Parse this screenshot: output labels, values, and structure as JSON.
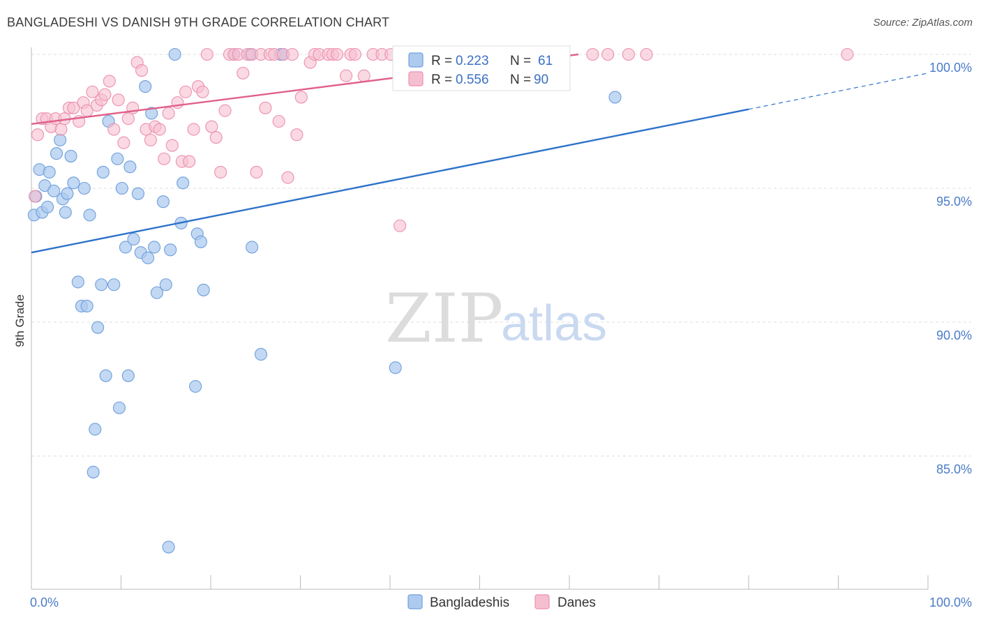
{
  "title": "BANGLADESHI VS DANISH 9TH GRADE CORRELATION CHART",
  "source": "Source: ZipAtlas.com",
  "watermark": {
    "zip": "ZIP",
    "atlas": "atlas"
  },
  "colors": {
    "blue_fill": "#aecbef",
    "blue_stroke": "#6e9fdc",
    "blue_line": "#2d72c9",
    "pink_fill": "#f6bfd0",
    "pink_stroke": "#ec8fae",
    "pink_line": "#e0608a",
    "grid": "#dddddd",
    "axis": "#bbbbbb"
  },
  "chart_data": {
    "type": "scatter",
    "title": "BANGLADESHI VS DANISH 9TH GRADE CORRELATION CHART",
    "xlabel": "",
    "ylabel": "9th Grade",
    "xlim": [
      0,
      100
    ],
    "ylim": [
      80.5,
      100.8
    ],
    "x_tick_labels": [
      "0.0%",
      "100.0%"
    ],
    "y_ticks": [
      {
        "value": 100,
        "label": "100.0%"
      },
      {
        "value": 95,
        "label": "95.0%"
      },
      {
        "value": 90,
        "label": "90.0%"
      },
      {
        "value": 85,
        "label": "85.0%"
      }
    ],
    "legend_stats": [
      {
        "r_label": "R = ",
        "r": "0.223",
        "n_label": "N = ",
        "n": "61"
      },
      {
        "r_label": "R = ",
        "r": "0.556",
        "n_label": "N = ",
        "n": "90"
      }
    ],
    "series": [
      {
        "name": "Bangladeshis",
        "trend": {
          "x0": 0,
          "y0": 92.6,
          "x1": 80,
          "y1": 97.95,
          "dash_to_x": 100,
          "dash_to_y": 99.3
        },
        "points": [
          [
            0.3,
            94.0
          ],
          [
            0.5,
            94.7
          ],
          [
            0.9,
            95.7
          ],
          [
            1.2,
            94.1
          ],
          [
            1.5,
            95.1
          ],
          [
            1.8,
            94.3
          ],
          [
            2.0,
            95.6
          ],
          [
            2.5,
            94.9
          ],
          [
            2.8,
            96.3
          ],
          [
            3.2,
            96.8
          ],
          [
            3.5,
            94.6
          ],
          [
            3.8,
            94.1
          ],
          [
            4.0,
            94.8
          ],
          [
            4.4,
            96.2
          ],
          [
            4.7,
            95.2
          ],
          [
            5.2,
            91.5
          ],
          [
            5.6,
            90.6
          ],
          [
            5.9,
            95.0
          ],
          [
            6.2,
            90.6
          ],
          [
            6.5,
            94.0
          ],
          [
            6.9,
            84.4
          ],
          [
            7.1,
            86.0
          ],
          [
            7.4,
            89.8
          ],
          [
            7.8,
            91.4
          ],
          [
            8.0,
            95.6
          ],
          [
            8.3,
            88.0
          ],
          [
            8.6,
            97.5
          ],
          [
            9.2,
            91.4
          ],
          [
            9.6,
            96.1
          ],
          [
            9.8,
            86.8
          ],
          [
            10.1,
            95.0
          ],
          [
            10.5,
            92.8
          ],
          [
            10.8,
            88.0
          ],
          [
            11.0,
            95.8
          ],
          [
            11.4,
            93.1
          ],
          [
            11.9,
            94.8
          ],
          [
            12.2,
            92.6
          ],
          [
            12.7,
            98.8
          ],
          [
            13.0,
            92.4
          ],
          [
            13.4,
            97.8
          ],
          [
            13.7,
            92.8
          ],
          [
            14.0,
            91.1
          ],
          [
            14.7,
            94.5
          ],
          [
            15.0,
            91.4
          ],
          [
            15.3,
            81.6
          ],
          [
            15.5,
            92.7
          ],
          [
            16.0,
            100.0
          ],
          [
            16.7,
            93.7
          ],
          [
            16.9,
            95.2
          ],
          [
            18.3,
            87.6
          ],
          [
            18.5,
            93.3
          ],
          [
            18.9,
            93.0
          ],
          [
            19.2,
            91.2
          ],
          [
            22.6,
            100.0
          ],
          [
            24.4,
            100.0
          ],
          [
            24.6,
            92.8
          ],
          [
            25.6,
            88.8
          ],
          [
            27.8,
            100.0
          ],
          [
            28.1,
            100.0
          ],
          [
            40.6,
            88.3
          ],
          [
            65.1,
            98.4
          ]
        ]
      },
      {
        "name": "Danes",
        "trend": {
          "x0": 0,
          "y0": 97.4,
          "x1": 61,
          "y1": 100.0
        },
        "points": [
          [
            0.4,
            94.7
          ],
          [
            0.7,
            97.0
          ],
          [
            1.2,
            97.6
          ],
          [
            1.7,
            97.6
          ],
          [
            2.2,
            97.3
          ],
          [
            2.7,
            97.6
          ],
          [
            3.3,
            97.2
          ],
          [
            3.7,
            97.6
          ],
          [
            4.2,
            98.0
          ],
          [
            4.7,
            98.0
          ],
          [
            5.3,
            97.5
          ],
          [
            5.8,
            98.2
          ],
          [
            6.2,
            97.9
          ],
          [
            6.8,
            98.6
          ],
          [
            7.3,
            98.1
          ],
          [
            7.8,
            98.3
          ],
          [
            8.2,
            98.5
          ],
          [
            8.7,
            99.0
          ],
          [
            9.2,
            97.2
          ],
          [
            9.7,
            98.3
          ],
          [
            10.3,
            96.7
          ],
          [
            10.8,
            97.6
          ],
          [
            11.3,
            98.0
          ],
          [
            11.8,
            99.7
          ],
          [
            12.3,
            99.4
          ],
          [
            12.8,
            97.2
          ],
          [
            13.3,
            96.8
          ],
          [
            13.8,
            97.3
          ],
          [
            14.3,
            97.2
          ],
          [
            14.8,
            96.1
          ],
          [
            15.3,
            97.8
          ],
          [
            15.7,
            96.6
          ],
          [
            16.3,
            98.2
          ],
          [
            16.8,
            96.0
          ],
          [
            17.2,
            98.6
          ],
          [
            17.6,
            96.0
          ],
          [
            18.1,
            97.2
          ],
          [
            18.6,
            98.8
          ],
          [
            19.1,
            98.6
          ],
          [
            19.6,
            100.0
          ],
          [
            20.1,
            97.3
          ],
          [
            20.6,
            96.9
          ],
          [
            21.1,
            95.6
          ],
          [
            21.6,
            97.9
          ],
          [
            22.1,
            100.0
          ],
          [
            22.6,
            100.0
          ],
          [
            23.1,
            100.0
          ],
          [
            23.6,
            99.3
          ],
          [
            24.1,
            100.0
          ],
          [
            24.6,
            100.0
          ],
          [
            25.1,
            95.6
          ],
          [
            25.6,
            100.0
          ],
          [
            26.1,
            98.0
          ],
          [
            26.6,
            100.0
          ],
          [
            27.1,
            100.0
          ],
          [
            27.6,
            97.5
          ],
          [
            28.1,
            100.0
          ],
          [
            28.6,
            95.4
          ],
          [
            29.1,
            100.0
          ],
          [
            29.6,
            97.0
          ],
          [
            30.1,
            98.4
          ],
          [
            31.1,
            99.7
          ],
          [
            31.6,
            100.0
          ],
          [
            32.1,
            100.0
          ],
          [
            33.1,
            100.0
          ],
          [
            33.6,
            100.0
          ],
          [
            34.1,
            100.0
          ],
          [
            35.1,
            99.2
          ],
          [
            35.6,
            100.0
          ],
          [
            36.1,
            100.0
          ],
          [
            37.1,
            99.2
          ],
          [
            38.1,
            100.0
          ],
          [
            39.1,
            100.0
          ],
          [
            40.1,
            100.0
          ],
          [
            41.1,
            93.6
          ],
          [
            42.1,
            100.0
          ],
          [
            43.1,
            100.0
          ],
          [
            44.1,
            100.0
          ],
          [
            45.1,
            100.0
          ],
          [
            46.1,
            100.0
          ],
          [
            50.1,
            100.0
          ],
          [
            51.1,
            100.0
          ],
          [
            52.1,
            100.0
          ],
          [
            55.1,
            100.0
          ],
          [
            58.1,
            100.0
          ],
          [
            62.6,
            100.0
          ],
          [
            64.3,
            100.0
          ],
          [
            66.6,
            100.0
          ],
          [
            68.6,
            100.0
          ],
          [
            91.0,
            100.0
          ]
        ]
      }
    ]
  }
}
